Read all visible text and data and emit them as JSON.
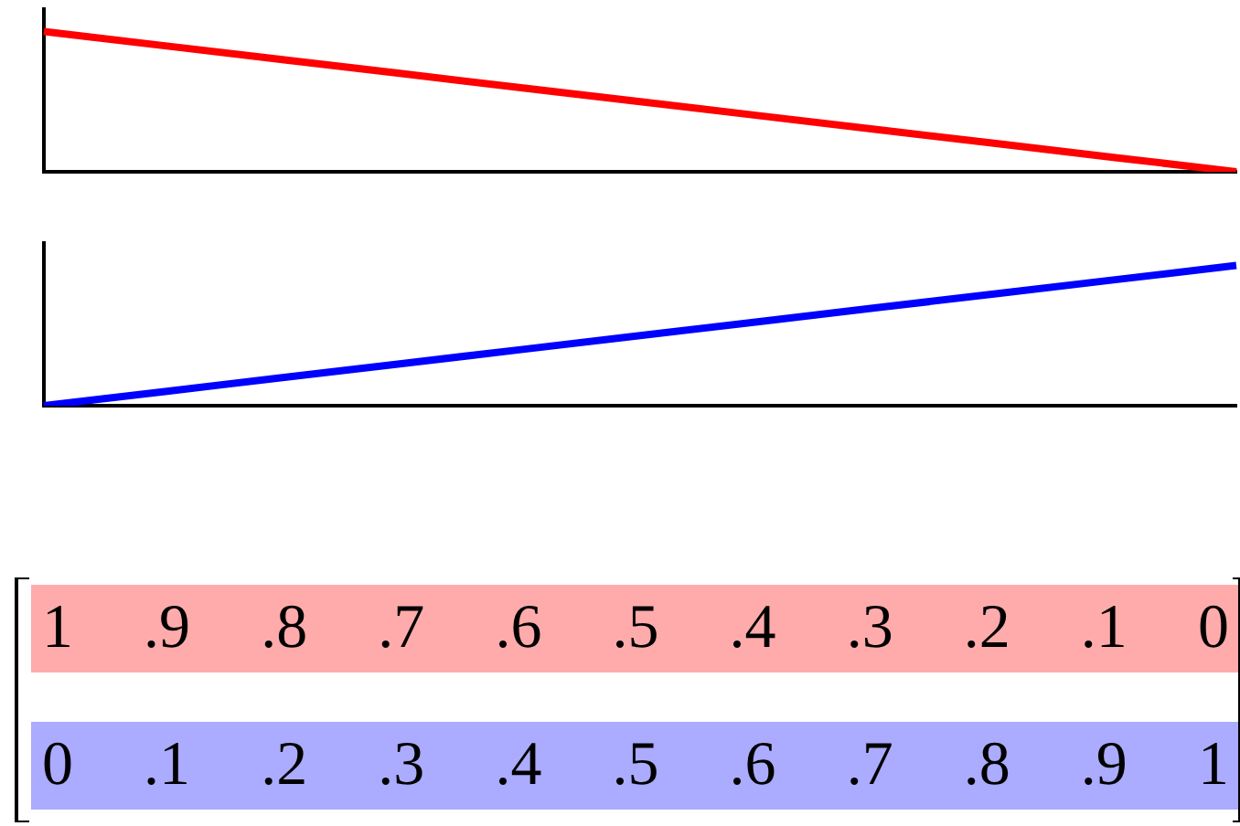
{
  "chart_data": [
    {
      "type": "line",
      "categories": [
        null,
        null,
        null,
        null,
        null,
        null,
        null,
        null,
        null,
        null,
        null
      ],
      "series": [
        {
          "color": "#ff0000",
          "values": [
            1,
            0.9,
            0.8,
            0.7,
            0.6,
            0.5,
            0.4,
            0.3,
            0.2,
            0.1,
            0
          ],
          "value_labels": [
            "1",
            ".9",
            ".8",
            ".7",
            ".6",
            ".5",
            ".4",
            ".3",
            ".2",
            ".1",
            "0"
          ]
        }
      ],
      "ylim": [
        0,
        1.16
      ],
      "marker": "none"
    },
    {
      "type": "line",
      "categories": [
        null,
        null,
        null,
        null,
        null,
        null,
        null,
        null,
        null,
        null,
        null
      ],
      "series": [
        {
          "color": "#0000ff",
          "values": [
            0,
            0.1,
            0.2,
            0.3,
            0.4,
            0.5,
            0.6,
            0.7,
            0.8,
            0.9,
            1
          ],
          "value_labels": [
            "0",
            ".1",
            ".2",
            ".3",
            ".4",
            ".5",
            ".6",
            ".7",
            ".8",
            ".9",
            "1"
          ]
        }
      ],
      "ylim": [
        0,
        1.16
      ],
      "marker": "none"
    }
  ]
}
